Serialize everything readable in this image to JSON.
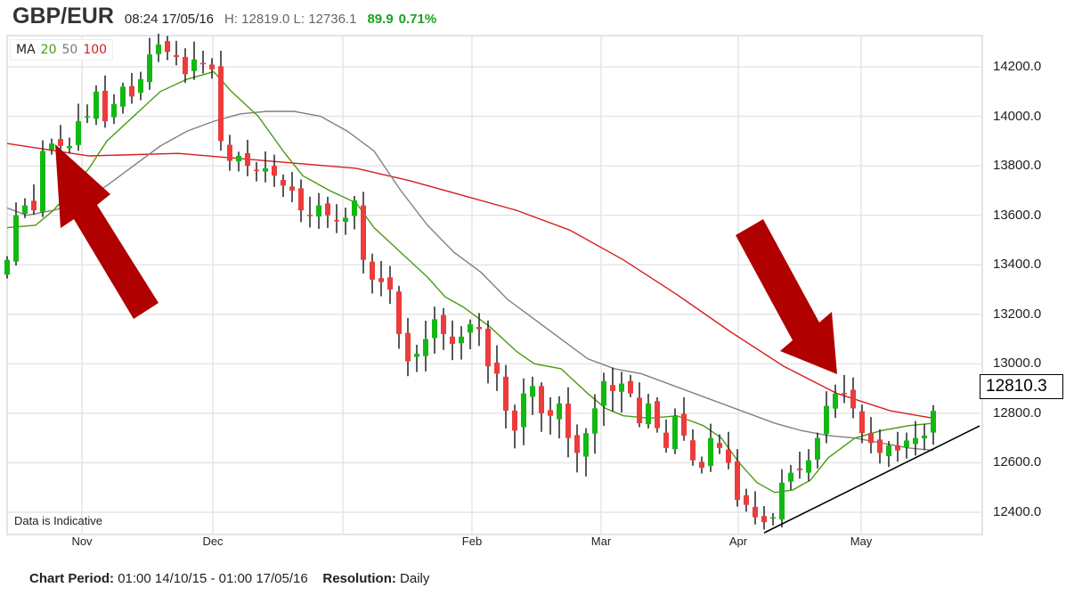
{
  "header": {
    "symbol": "GBP/EUR",
    "time": "08:24 17/05/16",
    "high_low": "H: 12819.0 L: 12736.1",
    "change": "89.9",
    "change_pct": "0.71%"
  },
  "legend": {
    "label": "MA",
    "ma20": "20",
    "ma50": "50",
    "ma100": "100"
  },
  "note": "Data is Indicative",
  "footer": {
    "period_label": "Chart Period:",
    "period_value": "01:00 14/10/15 - 01:00 17/05/16",
    "resolution_label": "Resolution:",
    "resolution_value": "Daily"
  },
  "colors": {
    "up": "#13b813",
    "down": "#ee3b3b",
    "ma20": "#4b9a0f",
    "ma50": "#808080",
    "ma100": "#d31e1e",
    "arrow": "#b00000"
  },
  "chart_data": {
    "type": "candlestick",
    "title": "GBP/EUR",
    "ylim": [
      12300,
      14350
    ],
    "yticks": [
      "12400.0",
      "12600.0",
      "12800.0",
      "13000.0",
      "13200.0",
      "13400.0",
      "13600.0",
      "13800.0",
      "14000.0",
      "14200.0"
    ],
    "ytick_values": [
      12400,
      12600,
      12800,
      13000,
      13200,
      13400,
      13600,
      13800,
      14000,
      14200
    ],
    "xticks": [
      {
        "label": "Nov",
        "index": 8.4
      },
      {
        "label": "Dec",
        "index": 23.1
      },
      {
        "label": "",
        "index": 37.7
      },
      {
        "label": "Feb",
        "index": 52.2
      },
      {
        "label": "Mar",
        "index": 66.7
      },
      {
        "label": "Apr",
        "index": 82.1
      },
      {
        "label": "May",
        "index": 95.9
      }
    ],
    "last_price": "12810.3",
    "closes": [
      13420,
      13600,
      13640,
      13620,
      13860,
      13890,
      13880,
      13880,
      13980,
      14000,
      14100,
      13980,
      14050,
      14120,
      14080,
      14150,
      14250,
      14290,
      14260,
      14240,
      14170,
      14230,
      14210,
      14190,
      13900,
      13820,
      13840,
      13800,
      13780,
      13790,
      13760,
      13720,
      13700,
      13620,
      13600,
      13640,
      13600,
      13580,
      13590,
      13660,
      13420,
      13340,
      13330,
      13300,
      13120,
      13010,
      13040,
      13100,
      13180,
      13120,
      13080,
      13110,
      13160,
      13140,
      12990,
      12960,
      12810,
      12730,
      12880,
      12910,
      12800,
      12790,
      12840,
      12700,
      12640,
      12720,
      12820,
      12930,
      12890,
      12920,
      12880,
      12760,
      12840,
      12740,
      12660,
      12790,
      12710,
      12610,
      12580,
      12700,
      12660,
      12600,
      12450,
      12430,
      12380,
      12360,
      12380,
      12520,
      12560,
      12570,
      12610,
      12700,
      12830,
      12880,
      12880,
      12820,
      12720,
      12680,
      12640,
      12670,
      12650,
      12690,
      12700,
      12710,
      12810
    ],
    "ma20": [
      [
        0,
        13550
      ],
      [
        3.2,
        13560
      ],
      [
        5.2,
        13620
      ],
      [
        7.2,
        13700
      ],
      [
        9.2,
        13790
      ],
      [
        11.2,
        13900
      ],
      [
        14.2,
        14000
      ],
      [
        17.2,
        14100
      ],
      [
        20.2,
        14150
      ],
      [
        23.2,
        14180
      ],
      [
        25.2,
        14100
      ],
      [
        28.2,
        14000
      ],
      [
        31.2,
        13850
      ],
      [
        33.2,
        13760
      ],
      [
        36.2,
        13700
      ],
      [
        39.2,
        13650
      ],
      [
        41.2,
        13550
      ],
      [
        44.2,
        13450
      ],
      [
        47.2,
        13350
      ],
      [
        49.2,
        13270
      ],
      [
        51.2,
        13230
      ],
      [
        54.2,
        13150
      ],
      [
        57.2,
        13050
      ],
      [
        59.2,
        13000
      ],
      [
        62.2,
        12980
      ],
      [
        65.2,
        12880
      ],
      [
        67.2,
        12820
      ],
      [
        69.2,
        12790
      ],
      [
        72.2,
        12780
      ],
      [
        75.2,
        12790
      ],
      [
        78.2,
        12750
      ],
      [
        80.2,
        12700
      ],
      [
        82.2,
        12600
      ],
      [
        84.2,
        12520
      ],
      [
        86.2,
        12480
      ],
      [
        88.2,
        12490
      ],
      [
        90.2,
        12530
      ],
      [
        92.2,
        12620
      ],
      [
        95.2,
        12700
      ],
      [
        98.2,
        12730
      ],
      [
        101.2,
        12750
      ],
      [
        104,
        12760
      ]
    ],
    "ma50": [
      [
        0,
        13630
      ],
      [
        2.2,
        13600
      ],
      [
        5.2,
        13620
      ],
      [
        8.2,
        13650
      ],
      [
        11.2,
        13720
      ],
      [
        14.2,
        13800
      ],
      [
        17.2,
        13880
      ],
      [
        20.2,
        13940
      ],
      [
        23.2,
        13980
      ],
      [
        26.2,
        14010
      ],
      [
        29.2,
        14020
      ],
      [
        32.2,
        14020
      ],
      [
        35.2,
        14000
      ],
      [
        38.2,
        13940
      ],
      [
        41.2,
        13860
      ],
      [
        44.2,
        13700
      ],
      [
        47.2,
        13560
      ],
      [
        50.2,
        13450
      ],
      [
        53.2,
        13370
      ],
      [
        56.2,
        13260
      ],
      [
        59.2,
        13180
      ],
      [
        62.2,
        13100
      ],
      [
        65.2,
        13020
      ],
      [
        68.2,
        12980
      ],
      [
        71.2,
        12960
      ],
      [
        74.2,
        12920
      ],
      [
        77.2,
        12880
      ],
      [
        80.2,
        12840
      ],
      [
        83.2,
        12800
      ],
      [
        86.2,
        12760
      ],
      [
        89.2,
        12730
      ],
      [
        92.2,
        12710
      ],
      [
        95.2,
        12700
      ],
      [
        98.2,
        12680
      ],
      [
        101.2,
        12660
      ],
      [
        104,
        12650
      ]
    ],
    "ma100": [
      [
        0,
        13890
      ],
      [
        9.2,
        13840
      ],
      [
        19.2,
        13850
      ],
      [
        29.2,
        13820
      ],
      [
        39.2,
        13790
      ],
      [
        45.2,
        13740
      ],
      [
        51.2,
        13680
      ],
      [
        57.2,
        13620
      ],
      [
        63.2,
        13540
      ],
      [
        69.2,
        13420
      ],
      [
        75.2,
        13280
      ],
      [
        81.2,
        13130
      ],
      [
        87.2,
        12990
      ],
      [
        93.2,
        12880
      ],
      [
        99.2,
        12810
      ],
      [
        104,
        12780
      ]
    ],
    "trendline": [
      [
        85,
        12317
      ],
      [
        109.2,
        12749
      ]
    ],
    "annotations": [
      {
        "type": "arrow",
        "points_to": "Nov high near MA100"
      },
      {
        "type": "arrow",
        "points_to": "late-April high at MA100"
      }
    ]
  }
}
